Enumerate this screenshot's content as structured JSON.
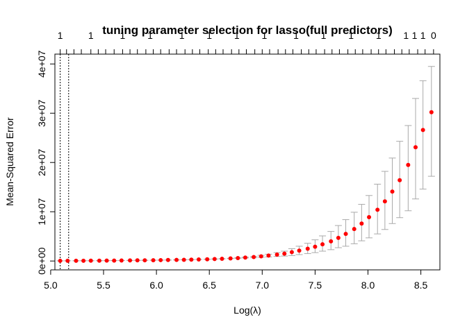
{
  "chart_data": {
    "type": "scatter",
    "title": "tuning parameter selection for lasso(full predictors)",
    "xlabel": "Log(λ)",
    "ylabel": "Mean-Squared Error",
    "xlim": [
      5.04,
      8.68
    ],
    "ylim": [
      -1800000,
      42000000
    ],
    "x_ticks": [
      5.0,
      5.5,
      6.0,
      6.5,
      7.0,
      7.5,
      8.0,
      8.5
    ],
    "x_tick_labels": [
      "5.0",
      "5.5",
      "6.0",
      "6.5",
      "7.0",
      "7.5",
      "8.0",
      "8.5"
    ],
    "y_ticks": [
      0,
      10000000,
      20000000,
      30000000,
      40000000
    ],
    "y_tick_labels": [
      "0e+00",
      "1e+07",
      "2e+07",
      "3e+07",
      "4e+07"
    ],
    "top_axis_labels": [
      "1",
      "1",
      "1",
      "1",
      "1",
      "1",
      "1",
      "1",
      "1",
      "1",
      "1",
      "1",
      "1",
      "1",
      "1",
      "0"
    ],
    "top_axis_label_at": [
      5.09,
      5.38,
      5.68,
      5.94,
      6.24,
      6.5,
      6.76,
      7.02,
      7.32,
      7.58,
      7.84,
      8.1,
      8.36,
      8.44,
      8.52,
      8.62
    ],
    "top_tick_x": [
      5.09,
      5.15,
      5.22,
      5.29,
      5.38,
      5.45,
      5.52,
      5.6,
      5.68,
      5.75,
      5.82,
      5.9,
      5.97,
      6.04,
      6.12,
      6.19,
      6.27,
      6.34,
      6.41,
      6.49,
      6.56,
      6.63,
      6.71,
      6.78,
      6.85,
      6.93,
      7.0,
      7.07,
      7.15,
      7.22,
      7.29,
      7.37,
      7.44,
      7.51,
      7.59,
      7.66,
      7.73,
      7.81,
      7.88,
      7.95,
      8.03,
      8.1,
      8.17,
      8.25,
      8.32,
      8.39,
      8.47,
      8.54,
      8.62
    ],
    "vlines": [
      5.09,
      5.17
    ],
    "x": [
      5.09,
      5.16,
      5.24,
      5.31,
      5.38,
      5.46,
      5.53,
      5.6,
      5.67,
      5.75,
      5.82,
      5.89,
      5.97,
      6.04,
      6.11,
      6.19,
      6.26,
      6.33,
      6.4,
      6.48,
      6.55,
      6.62,
      6.7,
      6.77,
      6.84,
      6.92,
      6.99,
      7.06,
      7.14,
      7.21,
      7.28,
      7.35,
      7.43,
      7.5,
      7.57,
      7.65,
      7.72,
      7.79,
      7.87,
      7.94,
      8.01,
      8.09,
      8.16,
      8.23,
      8.3,
      8.38,
      8.45,
      8.52,
      8.6
    ],
    "y": [
      40000,
      45000,
      50000,
      55000,
      60000,
      70000,
      80000,
      90000,
      100000,
      115000,
      130000,
      145000,
      160000,
      180000,
      200000,
      225000,
      250000,
      280000,
      310000,
      350000,
      400000,
      450000,
      520000,
      600000,
      700000,
      800000,
      950000,
      1100000,
      1300000,
      1500000,
      1800000,
      2100000,
      2500000,
      2900000,
      3400000,
      4000000,
      4700000,
      5500000,
      6500000,
      7600000,
      8900000,
      10400000,
      12100000,
      14100000,
      16400000,
      19500000,
      23100000,
      26600000,
      30200000
    ],
    "y_upper": [
      40000,
      45000,
      50000,
      55000,
      60000,
      70000,
      80000,
      90000,
      100000,
      115000,
      130000,
      145000,
      160000,
      180000,
      200000,
      225000,
      250000,
      280000,
      310000,
      350000,
      400000,
      470000,
      550000,
      650000,
      780000,
      930000,
      1150000,
      1380000,
      1700000,
      2000000,
      2500000,
      3000000,
      3600000,
      4300000,
      5100000,
      6000000,
      7200000,
      8400000,
      9900000,
      11500000,
      13300000,
      15600000,
      18200000,
      20900000,
      24300000,
      27500000,
      33000000,
      36600000,
      39500000
    ],
    "y_lower": [
      40000,
      45000,
      50000,
      55000,
      60000,
      70000,
      80000,
      90000,
      100000,
      115000,
      130000,
      145000,
      160000,
      180000,
      200000,
      225000,
      250000,
      280000,
      310000,
      350000,
      400000,
      430000,
      490000,
      550000,
      620000,
      680000,
      760000,
      830000,
      920000,
      1000000,
      1100000,
      1300000,
      1500000,
      1700000,
      2000000,
      2300000,
      2700000,
      3000000,
      3500000,
      4100000,
      4700000,
      5500000,
      6400000,
      7600000,
      8800000,
      10200000,
      12600000,
      14600000,
      17200000
    ],
    "grid": false,
    "legend": "none",
    "colors": {
      "points": "#ff0000",
      "errorbars": "#a9a9a9",
      "axes": "#000000"
    }
  }
}
